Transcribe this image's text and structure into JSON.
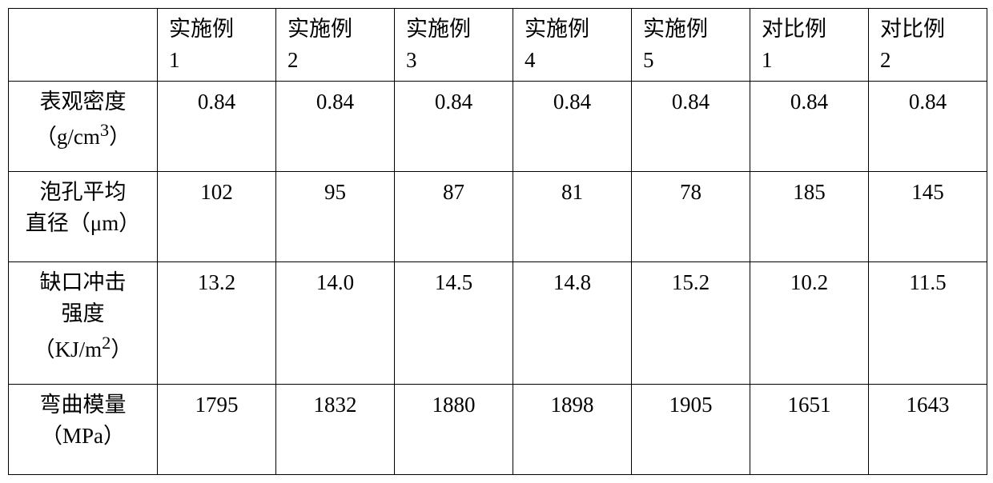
{
  "table": {
    "columns": [
      {
        "label_line1": "",
        "label_line2": ""
      },
      {
        "label_line1": "实施例",
        "label_line2": "1"
      },
      {
        "label_line1": "实施例",
        "label_line2": "2"
      },
      {
        "label_line1": "实施例",
        "label_line2": "3"
      },
      {
        "label_line1": "实施例",
        "label_line2": "4"
      },
      {
        "label_line1": "实施例",
        "label_line2": "5"
      },
      {
        "label_line1": "对比例",
        "label_line2": "1"
      },
      {
        "label_line1": "对比例",
        "label_line2": "2"
      }
    ],
    "rows": [
      {
        "label_html": "表观密度<br>（g/cm<sup>3</sup>）",
        "values": [
          "0.84",
          "0.84",
          "0.84",
          "0.84",
          "0.84",
          "0.84",
          "0.84"
        ]
      },
      {
        "label_html": "泡孔平均<br>直径（μm）",
        "values": [
          "102",
          "95",
          "87",
          "81",
          "78",
          "185",
          "145"
        ]
      },
      {
        "label_html": "缺口冲击<br>强度<br>（KJ/m<sup>2</sup>）",
        "values": [
          "13.2",
          "14.0",
          "14.5",
          "14.8",
          "15.2",
          "10.2",
          "11.5"
        ]
      },
      {
        "label_html": "弯曲模量<br>（MPa）",
        "values": [
          "1795",
          "1832",
          "1880",
          "1898",
          "1905",
          "1651",
          "1643"
        ]
      }
    ],
    "style": {
      "border_color": "#000000",
      "background_color": "#ffffff",
      "text_color": "#000000",
      "font_size_pt": 20,
      "row_label_align": "center",
      "value_align": "center"
    }
  }
}
